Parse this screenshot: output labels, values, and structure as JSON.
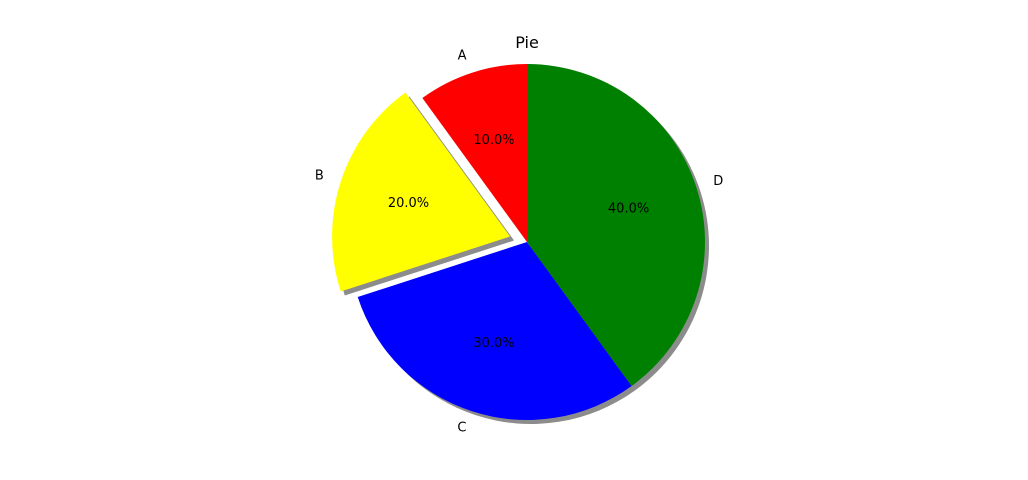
{
  "chart_data": {
    "type": "pie",
    "title": "Pie",
    "categories": [
      "A",
      "B",
      "C",
      "D"
    ],
    "values": [
      10,
      20,
      30,
      40
    ],
    "percent_labels": [
      "10.0%",
      "20.0%",
      "30.0%",
      "40.0%"
    ],
    "colors": [
      "#ff0000",
      "#ffff00",
      "#0000ff",
      "#008000"
    ],
    "exploded": [
      "B"
    ],
    "shadow": true,
    "start_angle_deg": 90,
    "direction": "counterclockwise"
  }
}
